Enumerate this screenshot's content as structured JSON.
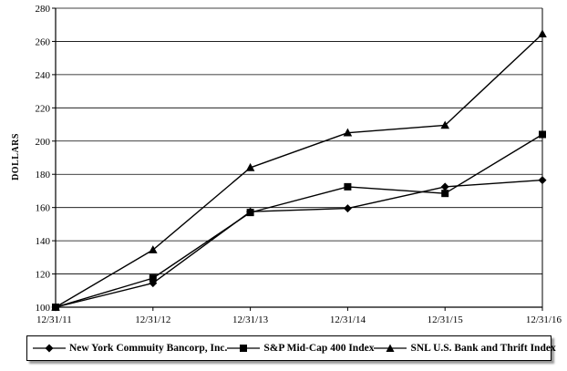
{
  "chart_data": {
    "type": "line",
    "title": "",
    "xlabel": "",
    "ylabel": "DOLLARS",
    "ylim": [
      100,
      280
    ],
    "yticks": [
      100,
      120,
      140,
      160,
      180,
      200,
      220,
      240,
      260,
      280
    ],
    "categories": [
      "12/31/11",
      "12/31/12",
      "12/31/13",
      "12/31/14",
      "12/31/15",
      "12/31/16"
    ],
    "grid": "horizontal",
    "legend_position": "bottom",
    "series": [
      {
        "name": "New York Commuity Bancorp, Inc.",
        "marker": "diamond",
        "color": "#000000",
        "values": [
          100,
          114.5,
          157.5,
          159.5,
          172.5,
          176.5
        ]
      },
      {
        "name": "S&P Mid-Cap 400 Index",
        "marker": "square",
        "color": "#000000",
        "values": [
          100,
          117.5,
          157,
          172.5,
          168.5,
          204
        ]
      },
      {
        "name": "SNL U.S. Bank and Thrift Index",
        "marker": "triangle",
        "color": "#000000",
        "values": [
          100,
          134.5,
          184,
          205,
          209.5,
          264.5
        ]
      }
    ]
  }
}
